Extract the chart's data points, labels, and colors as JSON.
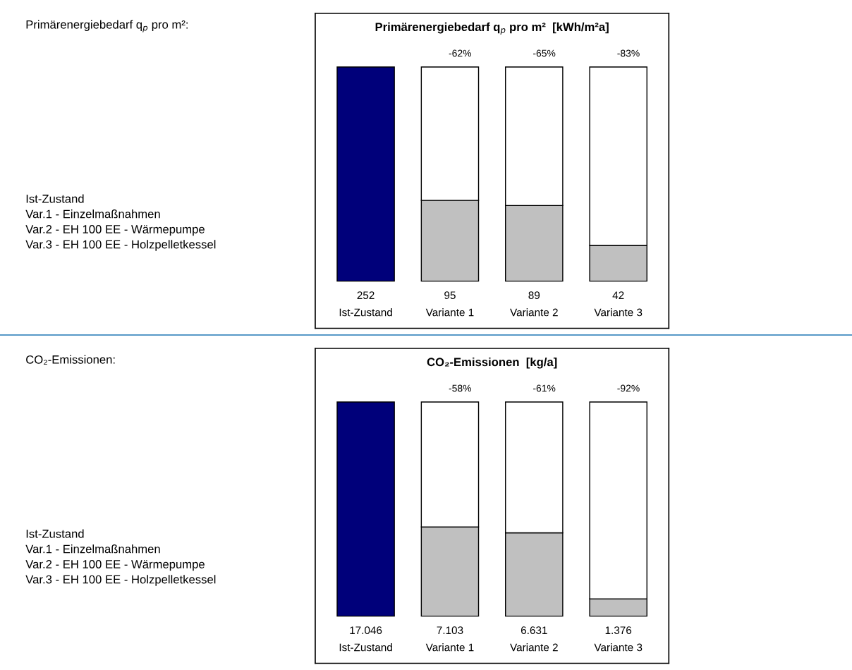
{
  "chart_data": [
    {
      "type": "bar",
      "title": "Primärenergiebedarf q$_{p}$ pro m²  [kWh/m²a]",
      "categories": [
        "Ist-Zustand",
        "Variante 1",
        "Variante 2",
        "Variante 3"
      ],
      "stacked": true,
      "series": [
        {
          "colors": [
            "#00007a",
            "#c0c0c0",
            "#c0c0c0",
            "#c0c0c0"
          ],
          "values": [
            252,
            95,
            89,
            42
          ],
          "value_labels": [
            "252",
            "95",
            "89",
            "42"
          ]
        },
        {
          "color": "#ffffff",
          "values": [
            null,
            157,
            163,
            210
          ]
        }
      ],
      "annotations": [
        "Primärenergiebedarf q$_{p}$ pro m²:",
        "Ist-Zustand\nVar.1 - Einzelmaßnahmen\nVar.2 - EH 100 EE - Wärmepumpe\nVar.3 - EH 100 EE - Holzpelletkessel",
        {
          "text": "-62%",
          "x": "Variante 1",
          "y": 252
        },
        {
          "text": "-65%",
          "x": "Variante 2",
          "y": 252
        },
        {
          "text": "-83%",
          "x": "Variante 3",
          "y": 252
        }
      ]
    },
    {
      "type": "bar",
      "title": "CO₂-Emissionen  [kg/a]",
      "categories": [
        "Ist-Zustand",
        "Variante 1",
        "Variante 2",
        "Variante 3"
      ],
      "stacked": true,
      "series": [
        {
          "colors": [
            "#00007a",
            "#c0c0c0",
            "#c0c0c0",
            "#c0c0c0"
          ],
          "values": [
            17046,
            7103,
            6631,
            1376
          ],
          "value_labels": [
            "17.046",
            "7.103",
            "6.631",
            "1.376"
          ]
        },
        {
          "color": "#ffffff",
          "values": [
            null,
            9943,
            10415,
            15670
          ]
        }
      ],
      "annotations": [
        "CO₂-Emissionen:",
        "Ist-Zustand\nVar.1 - Einzelmaßnahmen\nVar.2 - EH 100 EE - Wärmepumpe\nVar.3 - EH 100 EE - Holzpelletkessel",
        {
          "text": "-58%",
          "x": "Variante 1",
          "y": 17046
        },
        {
          "text": "-61%",
          "x": "Variante 2",
          "y": 17046
        },
        {
          "text": "-92%",
          "x": "Variante 3",
          "y": 17046
        }
      ]
    }
  ]
}
